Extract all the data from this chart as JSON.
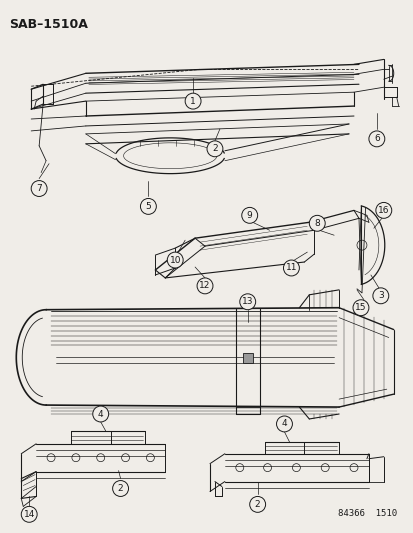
{
  "title": "SAB–1510A",
  "footer": "84366  1510",
  "bg_color": "#f0ede8",
  "line_color": "#1a1a1a",
  "gray": "#888888",
  "light_gray": "#cccccc"
}
